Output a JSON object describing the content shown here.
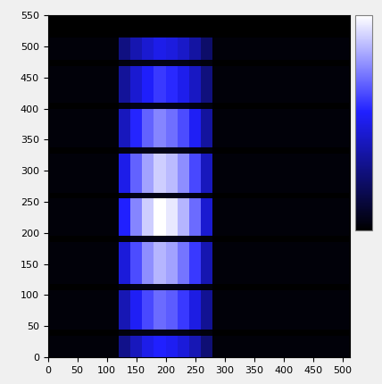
{
  "chart_data": {
    "type": "heatmap",
    "x_edges": [
      0,
      120,
      140,
      160,
      180,
      200,
      220,
      240,
      260,
      280,
      512
    ],
    "y_edges": [
      0,
      35,
      45,
      108,
      118,
      185,
      195,
      255,
      265,
      328,
      338,
      400,
      410,
      468,
      478,
      515,
      550
    ],
    "cells": [
      [
        0.02,
        0.3,
        0.41,
        0.5,
        0.55,
        0.52,
        0.47,
        0.39,
        0.25,
        0.02
      ],
      [
        0,
        0.03,
        0.05,
        0.05,
        0.05,
        0.05,
        0.05,
        0.04,
        0.03,
        0
      ],
      [
        0.02,
        0.39,
        0.53,
        0.63,
        0.7,
        0.67,
        0.6,
        0.49,
        0.32,
        0.02
      ],
      [
        0,
        0.03,
        0.05,
        0.05,
        0.05,
        0.05,
        0.05,
        0.04,
        0.03,
        0
      ],
      [
        0.02,
        0.47,
        0.64,
        0.77,
        0.85,
        0.81,
        0.72,
        0.6,
        0.38,
        0.02
      ],
      [
        0,
        0.03,
        0.05,
        0.05,
        0.05,
        0.05,
        0.05,
        0.04,
        0.03,
        0
      ],
      [
        0.02,
        0.55,
        0.75,
        0.9,
        1.0,
        0.95,
        0.85,
        0.7,
        0.45,
        0.02
      ],
      [
        0,
        0.03,
        0.05,
        0.05,
        0.05,
        0.05,
        0.05,
        0.04,
        0.03,
        0
      ],
      [
        0.02,
        0.5,
        0.68,
        0.81,
        0.9,
        0.86,
        0.77,
        0.63,
        0.41,
        0.02
      ],
      [
        0,
        0.03,
        0.05,
        0.05,
        0.05,
        0.05,
        0.05,
        0.04,
        0.03,
        0
      ],
      [
        0.02,
        0.41,
        0.56,
        0.68,
        0.75,
        0.71,
        0.64,
        0.53,
        0.34,
        0.02
      ],
      [
        0,
        0.03,
        0.05,
        0.05,
        0.05,
        0.05,
        0.05,
        0.04,
        0.03,
        0
      ],
      [
        0.02,
        0.33,
        0.45,
        0.54,
        0.6,
        0.57,
        0.51,
        0.42,
        0.27,
        0.02
      ],
      [
        0,
        0.03,
        0.05,
        0.05,
        0.05,
        0.05,
        0.05,
        0.04,
        0.03,
        0
      ],
      [
        0.02,
        0.28,
        0.38,
        0.45,
        0.5,
        0.48,
        0.43,
        0.35,
        0.23,
        0.02
      ],
      [
        0,
        0,
        0,
        0,
        0,
        0,
        0,
        0,
        0,
        0
      ]
    ],
    "color_range": [
      0,
      1
    ],
    "xlim": [
      0,
      512
    ],
    "ylim": [
      0,
      550
    ],
    "xticks": [
      0,
      50,
      100,
      150,
      200,
      250,
      300,
      350,
      400,
      450,
      500
    ],
    "yticks": [
      0,
      50,
      100,
      150,
      200,
      250,
      300,
      350,
      400,
      450,
      500,
      550
    ]
  }
}
